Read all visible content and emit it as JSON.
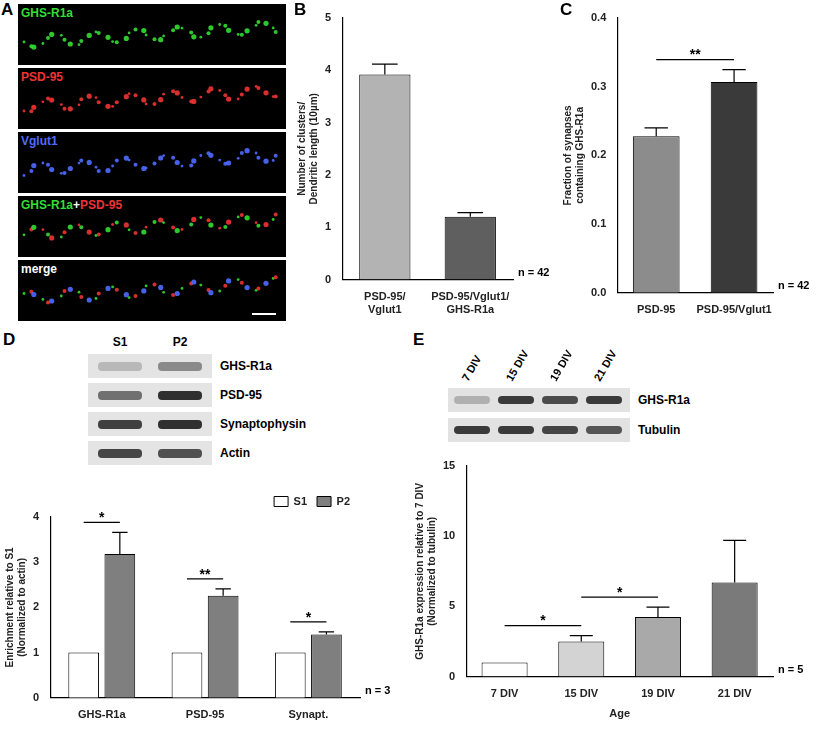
{
  "figure_panels": {
    "A": {
      "panel": "A",
      "rows": [
        {
          "parts": [
            {
              "text": "GHS-R1a",
              "color": "#33dd33"
            }
          ]
        },
        {
          "parts": [
            {
              "text": "PSD-95",
              "color": "#ee3333"
            }
          ]
        },
        {
          "parts": [
            {
              "text": "Vglut1",
              "color": "#4f6bff"
            }
          ]
        },
        {
          "parts": [
            {
              "text": "GHS-R1a",
              "color": "#33dd33"
            },
            {
              "text": "+",
              "color": "#ffffff"
            },
            {
              "text": "PSD-95",
              "color": "#ee3333"
            }
          ]
        },
        {
          "parts": [
            {
              "text": "merge",
              "color": "#ffffff"
            }
          ]
        }
      ]
    }
  },
  "chart_data": [
    {
      "panel": "B",
      "type": "bar",
      "categories": [
        "PSD-95/Vglut1",
        "PSD-95/Vglut1/GHS-R1a"
      ],
      "values": [
        3.92,
        1.2
      ],
      "errors": [
        0.2,
        0.08
      ],
      "colors": [
        "#b3b3b3",
        "#5f5f5f"
      ],
      "y_label": [
        "Number of clusters/",
        "Dendritic length (10µm)"
      ],
      "ylim": [
        0,
        5
      ],
      "yticks": [
        0,
        1,
        2,
        3,
        4,
        5
      ],
      "grid": false,
      "note": "n = 42"
    },
    {
      "panel": "C",
      "type": "bar",
      "categories": [
        "PSD-95",
        "PSD-95/Vglut1"
      ],
      "values": [
        0.228,
        0.307
      ],
      "errors": [
        0.012,
        0.018
      ],
      "colors": [
        "#8c8c8c",
        "#3a3a3a"
      ],
      "y_label": [
        "Fraction of synapses",
        "containing GHS-R1a"
      ],
      "ylim": [
        0,
        0.4
      ],
      "yticks": [
        {
          "value": 0,
          "label": "0.0"
        },
        0.1,
        0.2,
        0.3,
        0.4
      ],
      "grid": false,
      "significance": [
        {
          "between": [
            "PSD-95",
            "PSD-95/Vglut1"
          ],
          "label": "**"
        }
      ],
      "note": "n = 42"
    },
    {
      "panel": "D",
      "type": "bar",
      "categories": [
        "GHS-R1a",
        "PSD-95",
        "Synapt."
      ],
      "series": [
        {
          "name": "S1",
          "color": "#ffffff",
          "values": [
            1,
            1,
            1
          ],
          "errors": [
            0,
            0,
            0
          ]
        },
        {
          "name": "P2",
          "color": "#7f7f7f",
          "values": [
            3.18,
            2.26,
            1.4
          ],
          "errors": [
            0.48,
            0.15,
            0.06
          ]
        }
      ],
      "y_label": [
        "Enrichment relative to S1",
        "(Normalized to actin)"
      ],
      "ylim": [
        0,
        4
      ],
      "yticks": [
        0,
        1,
        2,
        3,
        4
      ],
      "grid": false,
      "legend": "top-right",
      "significance": [
        {
          "category": "GHS-R1a",
          "between": [
            "S1",
            "P2"
          ],
          "label": "*"
        },
        {
          "category": "PSD-95",
          "between": [
            "S1",
            "P2"
          ],
          "label": "**"
        },
        {
          "category": "Synapt.",
          "between": [
            "S1",
            "P2"
          ],
          "label": "*"
        }
      ],
      "note": "n = 3",
      "blot": {
        "lanes": [
          "S1",
          "P2"
        ],
        "bands": [
          "GHS-R1a",
          "PSD-95",
          "Synaptophysin",
          "Actin"
        ]
      }
    },
    {
      "panel": "E",
      "type": "bar",
      "categories": [
        "7 DIV",
        "15 DIV",
        "19 DIV",
        "21 DIV"
      ],
      "values": [
        1,
        2.5,
        4.25,
        6.7
      ],
      "errors": [
        0,
        0.42,
        0.7,
        3.0
      ],
      "colors": [
        "#ffffff",
        "#d3d3d3",
        "#a9a9a9",
        "#7a7a7a"
      ],
      "x_label": "Age",
      "y_label": [
        "GHS-R1a expression relative to 7 DIV",
        "(Normalized to tubulin)"
      ],
      "ylim": [
        0,
        15
      ],
      "yticks": [
        0,
        5,
        10,
        15
      ],
      "grid": false,
      "significance": [
        {
          "between": [
            "7 DIV",
            "15 DIV"
          ],
          "label": "*"
        },
        {
          "between": [
            "15 DIV",
            "19 DIV"
          ],
          "label": "*"
        }
      ],
      "note": "n = 5",
      "blot": {
        "lanes": [
          "7 DIV",
          "15 DIV",
          "19 DIV",
          "21 DIV"
        ],
        "bands": [
          "GHS-R1a",
          "Tubulin"
        ]
      }
    }
  ]
}
